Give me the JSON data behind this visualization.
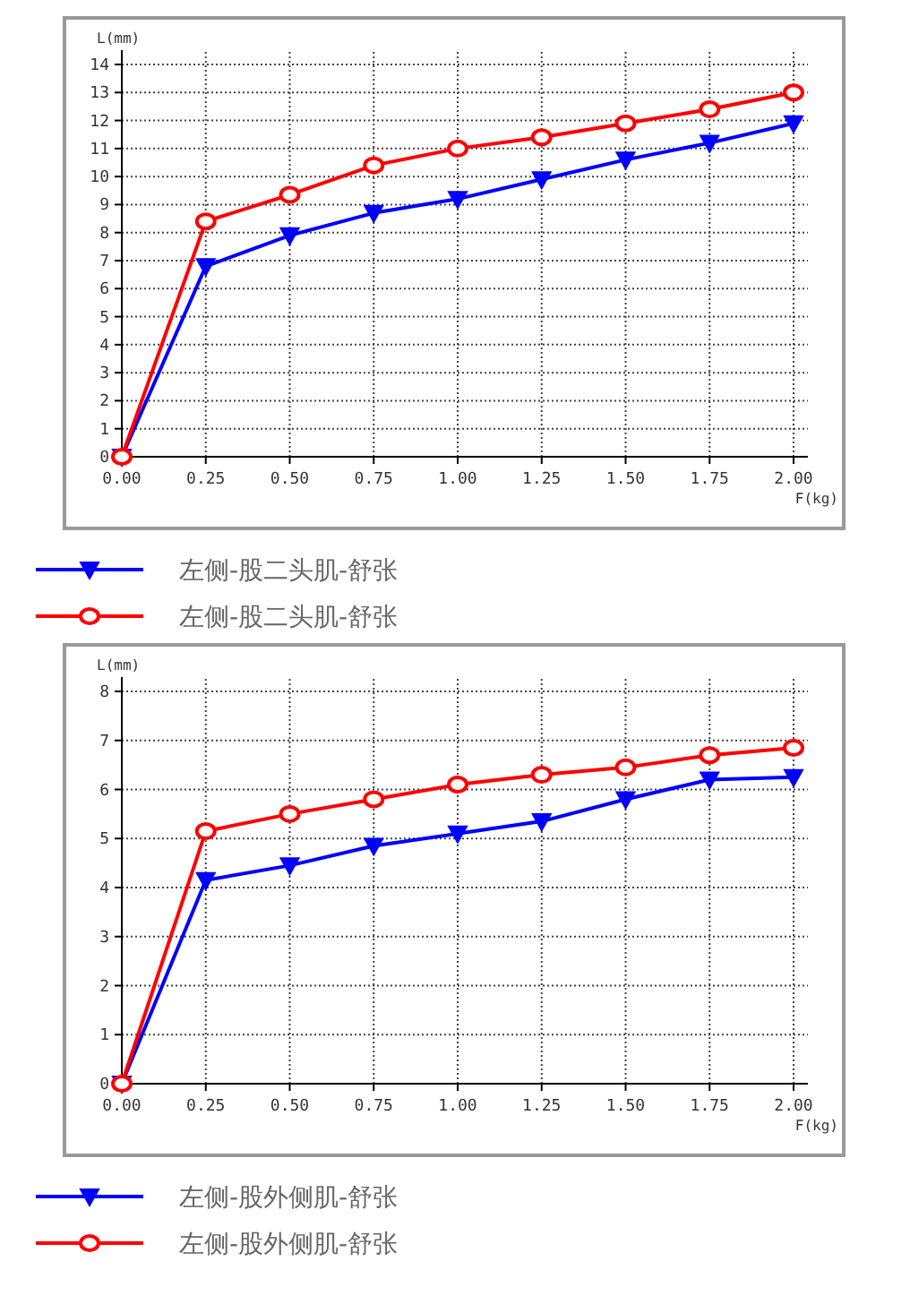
{
  "chart_data": [
    {
      "type": "line",
      "xlabel": "F(kg)",
      "ylabel": "L(mm)",
      "x": [
        0,
        0.25,
        0.5,
        0.75,
        1,
        1.25,
        1.5,
        1.75,
        2
      ],
      "xlim": [
        0,
        2
      ],
      "xticks": [
        {
          "value": 0,
          "label": "0.00"
        },
        {
          "value": 0.25,
          "label": "0.25"
        },
        {
          "value": 0.5,
          "label": "0.50"
        },
        {
          "value": 0.75,
          "label": "0.75"
        },
        {
          "value": 1,
          "label": "1.00"
        },
        {
          "value": 1.25,
          "label": "1.25"
        },
        {
          "value": 1.5,
          "label": "1.50"
        },
        {
          "value": 1.75,
          "label": "1.75"
        },
        {
          "value": 2,
          "label": "2.00"
        }
      ],
      "ylim": [
        0,
        14
      ],
      "yticks": [
        0,
        1,
        2,
        3,
        4,
        5,
        6,
        7,
        8,
        9,
        10,
        11,
        12,
        13,
        14
      ],
      "grid": true,
      "legend": "bottom",
      "series": [
        {
          "name": "左侧-股二头肌-舒张",
          "color": "#0000ff",
          "marker": "triangle",
          "values": [
            0,
            6.8,
            7.9,
            8.7,
            9.2,
            9.9,
            10.6,
            11.2,
            11.9
          ]
        },
        {
          "name": "左侧-股二头肌-舒张",
          "color": "#ff0000",
          "marker": "circle",
          "values": [
            0,
            8.4,
            9.35,
            10.4,
            11.0,
            11.4,
            11.9,
            12.4,
            13.0
          ]
        }
      ]
    },
    {
      "type": "line",
      "xlabel": "F(kg)",
      "ylabel": "L(mm)",
      "x": [
        0,
        0.25,
        0.5,
        0.75,
        1,
        1.25,
        1.5,
        1.75,
        2
      ],
      "xlim": [
        0,
        2
      ],
      "xticks": [
        {
          "value": 0,
          "label": "0.00"
        },
        {
          "value": 0.25,
          "label": "0.25"
        },
        {
          "value": 0.5,
          "label": "0.50"
        },
        {
          "value": 0.75,
          "label": "0.75"
        },
        {
          "value": 1,
          "label": "1.00"
        },
        {
          "value": 1.25,
          "label": "1.25"
        },
        {
          "value": 1.5,
          "label": "1.50"
        },
        {
          "value": 1.75,
          "label": "1.75"
        },
        {
          "value": 2,
          "label": "2.00"
        }
      ],
      "ylim": [
        0,
        8
      ],
      "yticks": [
        0,
        1,
        2,
        3,
        4,
        5,
        6,
        7,
        8
      ],
      "grid": true,
      "legend": "bottom",
      "series": [
        {
          "name": "左侧-股外侧肌-舒张",
          "color": "#0000ff",
          "marker": "triangle",
          "values": [
            0,
            4.15,
            4.45,
            4.85,
            5.1,
            5.35,
            5.8,
            6.2,
            6.25
          ]
        },
        {
          "name": "左侧-股外侧肌-舒张",
          "color": "#ff0000",
          "marker": "circle",
          "values": [
            0,
            5.15,
            5.5,
            5.8,
            6.1,
            6.3,
            6.45,
            6.7,
            6.85
          ]
        }
      ]
    }
  ]
}
